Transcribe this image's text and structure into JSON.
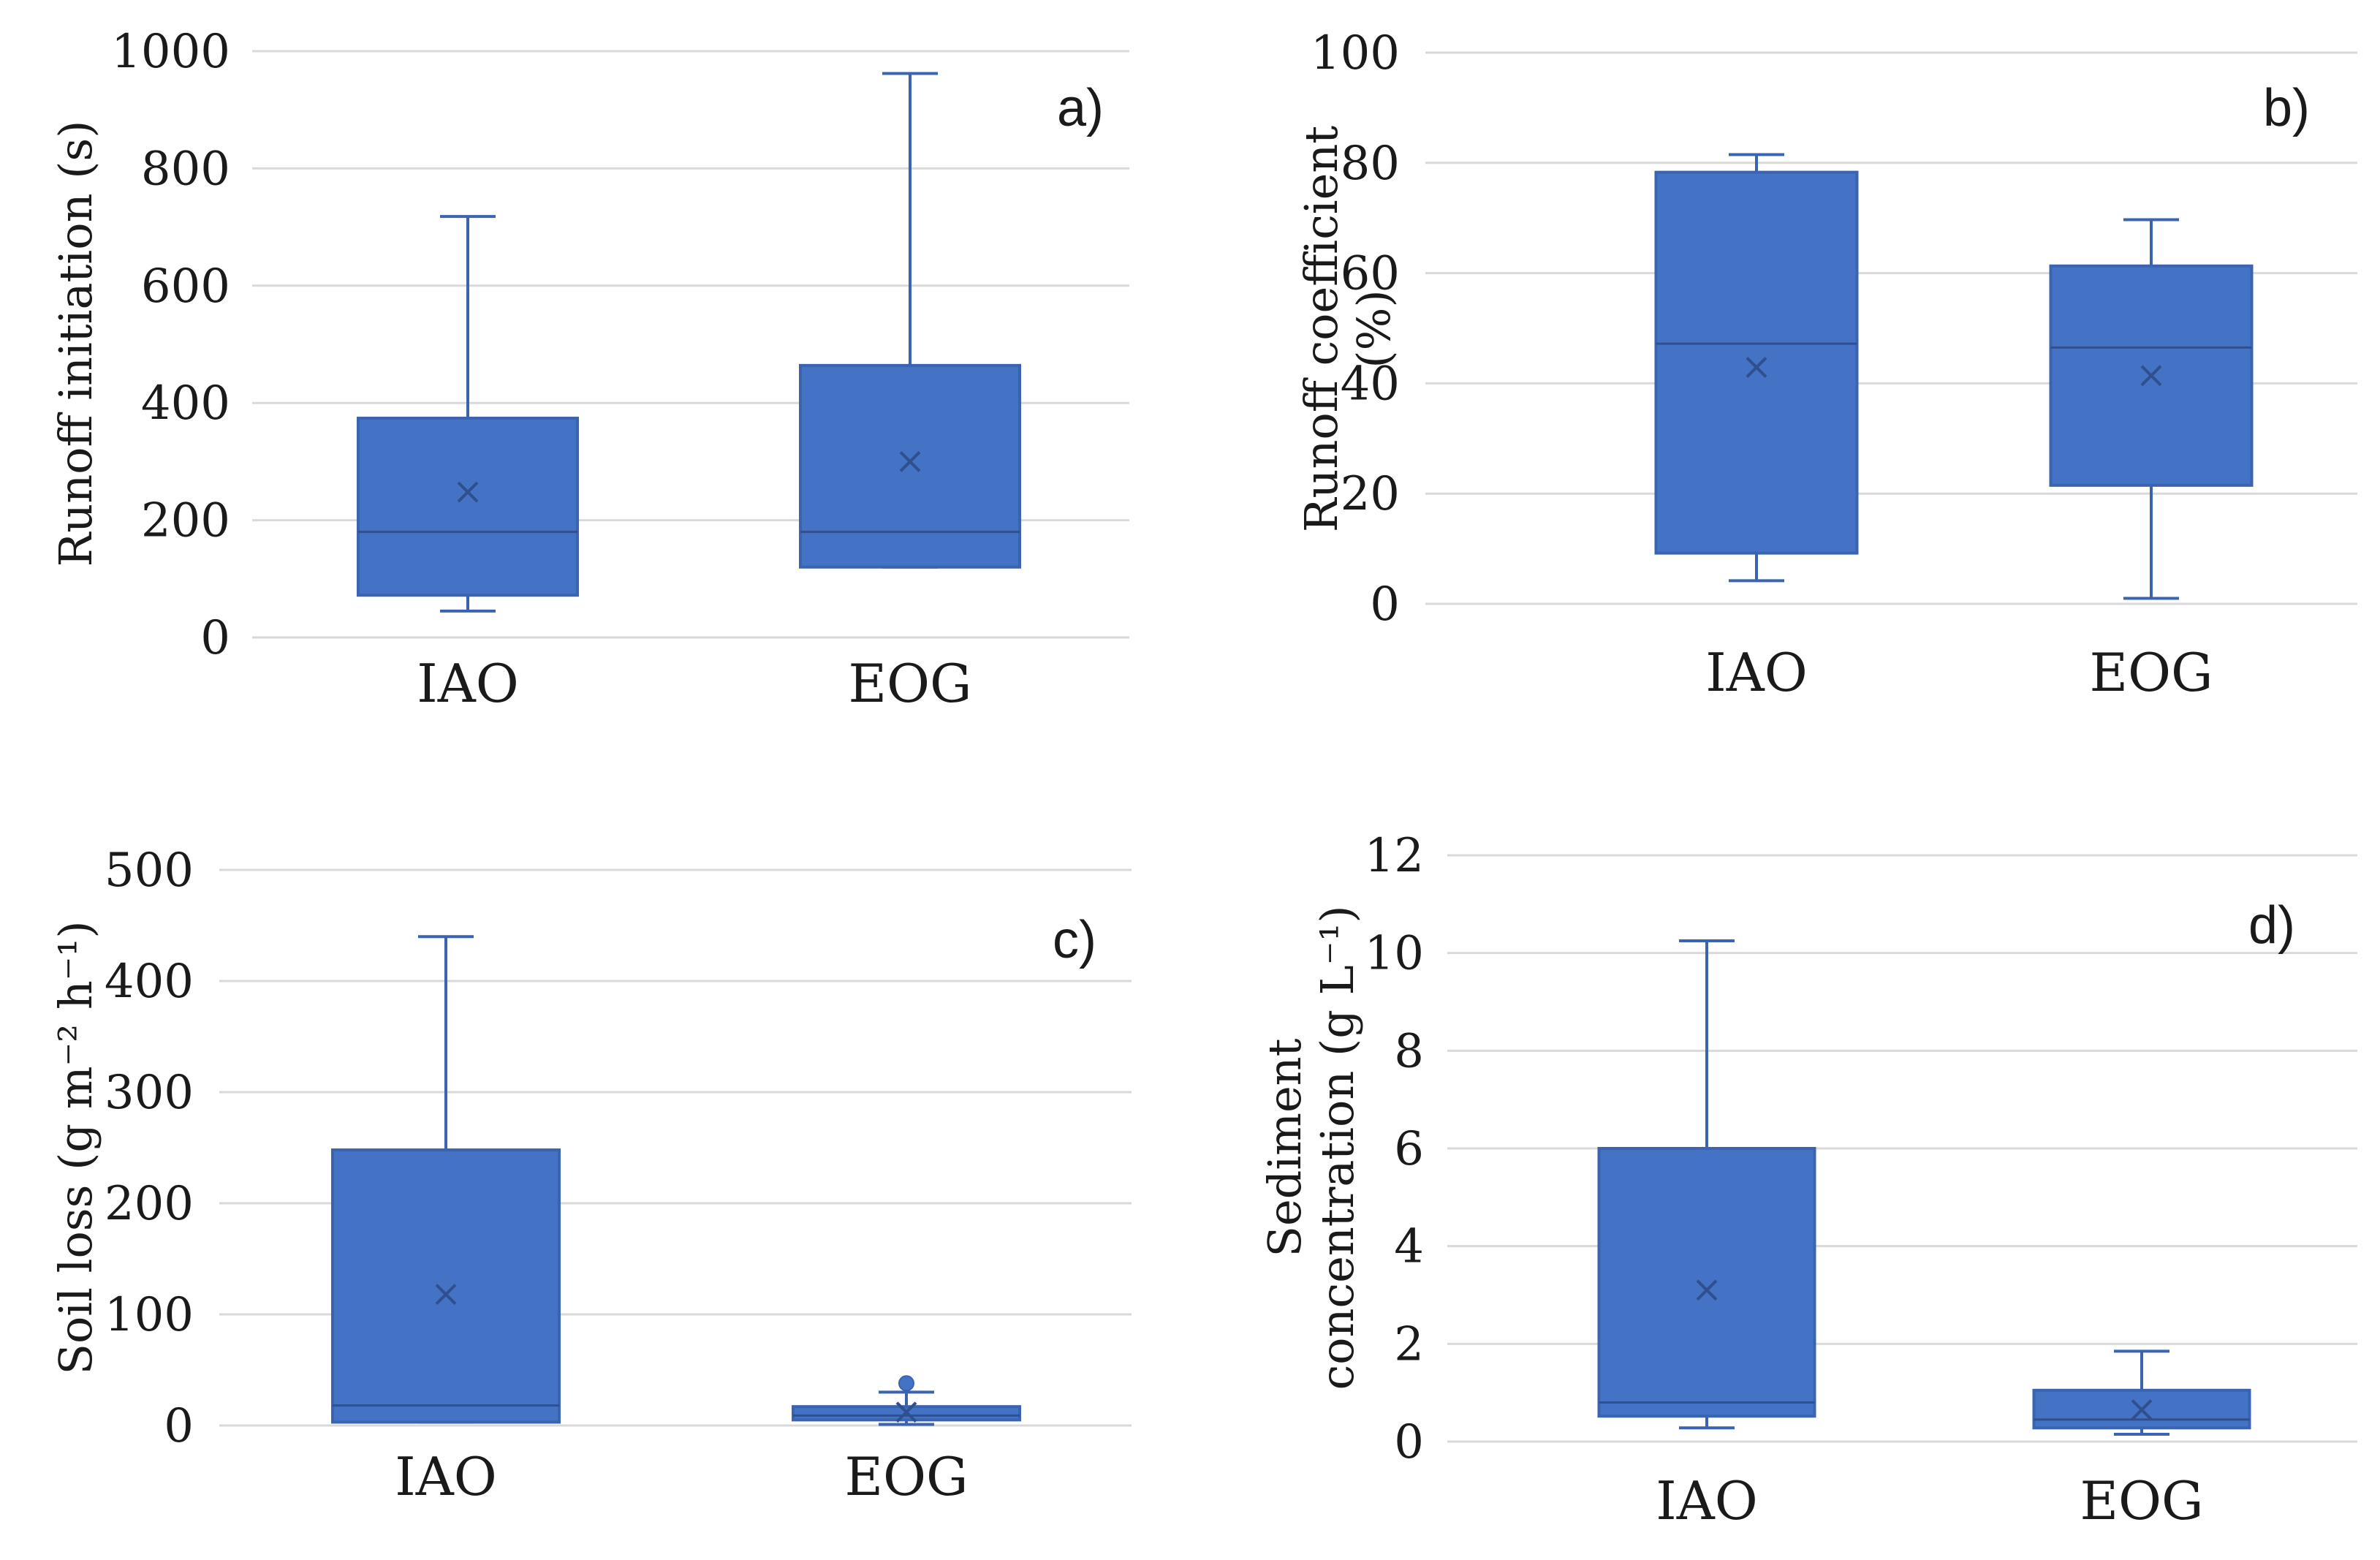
{
  "figure": {
    "background": "#ffffff"
  },
  "style": {
    "box_fill": "#4472C4",
    "box_stroke": "#3A64B0",
    "grid_color": "#D9D9D9",
    "text_color": "#1a1a1a"
  },
  "chart_data": [
    {
      "type": "box",
      "panel_label": "a)",
      "ylabel_lines": [
        "Runoff initiation (s)"
      ],
      "xlabel": "",
      "ylim": [
        0,
        1000
      ],
      "yticks": [
        0,
        200,
        400,
        600,
        800,
        1000
      ],
      "ytick_labels": [
        "0",
        "200",
        "400",
        "600",
        "800",
        "1000"
      ],
      "grid": true,
      "categories": [
        "IAO",
        "EOG"
      ],
      "boxes": [
        {
          "category": "IAO",
          "whisker_low": 45,
          "q1": 72,
          "median": 180,
          "q3": 374,
          "whisker_high": 718,
          "mean": 248,
          "outliers": []
        },
        {
          "category": "EOG",
          "whisker_low": 120,
          "q1": 120,
          "median": 180,
          "q3": 464,
          "whisker_high": 962,
          "mean": 300,
          "outliers": []
        }
      ]
    },
    {
      "type": "box",
      "panel_label": "b)",
      "ylabel_lines": [
        "Runoff coefficient",
        "(%)"
      ],
      "xlabel": "",
      "ylim": [
        0,
        100
      ],
      "yticks": [
        0,
        20,
        40,
        60,
        80,
        100
      ],
      "ytick_labels": [
        "0",
        "20",
        "40",
        "60",
        "80",
        "100"
      ],
      "grid": true,
      "categories": [
        "IAO",
        "EOG"
      ],
      "boxes": [
        {
          "category": "IAO",
          "whisker_low": 4.2,
          "q1": 9.2,
          "median": 47.2,
          "q3": 78.3,
          "whisker_high": 81.5,
          "mean": 42.9,
          "outliers": []
        },
        {
          "category": "EOG",
          "whisker_low": 1.0,
          "q1": 21.5,
          "median": 46.5,
          "q3": 61.3,
          "whisker_high": 69.7,
          "mean": 41.4,
          "outliers": []
        }
      ]
    },
    {
      "type": "box",
      "panel_label": "c)",
      "ylabel_lines": [
        "Soil loss (g m⁻² h⁻¹)"
      ],
      "xlabel": "",
      "ylim": [
        0,
        500
      ],
      "yticks": [
        0,
        100,
        200,
        300,
        400,
        500
      ],
      "ytick_labels": [
        "0",
        "100",
        "200",
        "300",
        "400",
        "500"
      ],
      "grid": true,
      "categories": [
        "IAO",
        "EOG"
      ],
      "boxes": [
        {
          "category": "IAO",
          "whisker_low": 3,
          "q1": 3,
          "median": 18,
          "q3": 248,
          "whisker_high": 440,
          "mean": 118,
          "outliers": []
        },
        {
          "category": "EOG",
          "whisker_low": 1,
          "q1": 5,
          "median": 9,
          "q3": 17,
          "whisker_high": 30,
          "mean": 12,
          "outliers": [
            38
          ]
        }
      ]
    },
    {
      "type": "box",
      "panel_label": "d)",
      "ylabel_lines": [
        "Sediment",
        "concentration (g L⁻¹)"
      ],
      "xlabel": "",
      "ylim": [
        0,
        12
      ],
      "yticks": [
        0,
        2,
        4,
        6,
        8,
        10,
        12
      ],
      "ytick_labels": [
        "0",
        "2",
        "4",
        "6",
        "8",
        "10",
        "12"
      ],
      "grid": true,
      "categories": [
        "IAO",
        "EOG"
      ],
      "boxes": [
        {
          "category": "IAO",
          "whisker_low": 0.28,
          "q1": 0.52,
          "median": 0.8,
          "q3": 6.0,
          "whisker_high": 10.25,
          "mean": 3.1,
          "outliers": []
        },
        {
          "category": "EOG",
          "whisker_low": 0.15,
          "q1": 0.28,
          "median": 0.45,
          "q3": 1.05,
          "whisker_high": 1.85,
          "mean": 0.65,
          "outliers": []
        }
      ]
    }
  ]
}
